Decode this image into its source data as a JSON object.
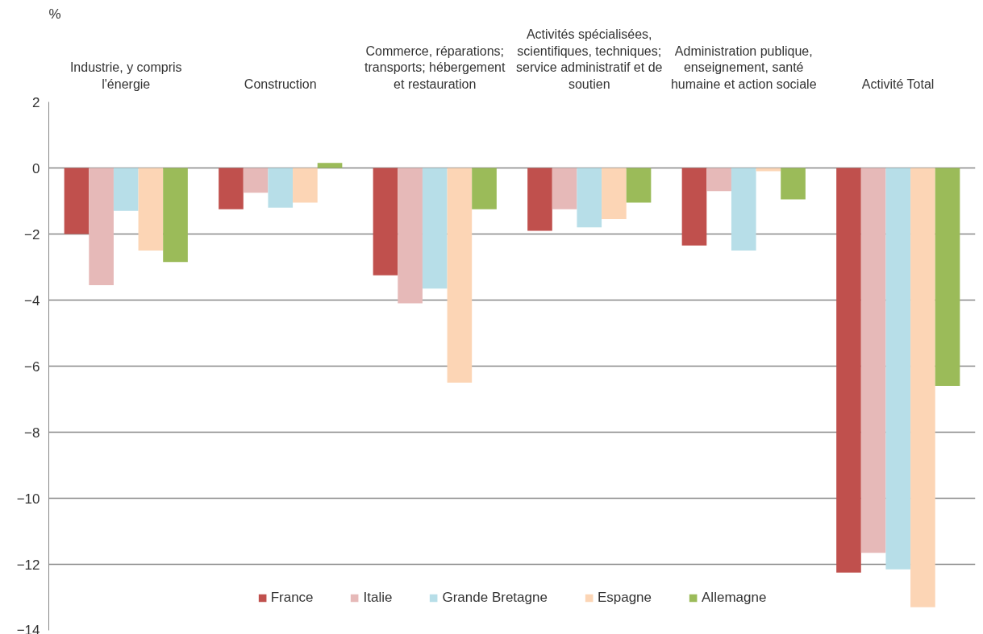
{
  "chart_data": {
    "type": "bar",
    "ylabel": "%",
    "categories": [
      "Industrie, y compris\nl'énergie",
      "Construction",
      "Commerce, réparations;\ntransports; hébergement\net restauration",
      "Activités spécialisées,\nscientifiques, techniques;\nservice administratif et de\nsoutien",
      "Administration publique,\nenseignement, santé\nhumaine et action sociale",
      "Activité Total"
    ],
    "series": [
      {
        "name": "France",
        "color": "#c0504d",
        "values": [
          -2.0,
          -1.25,
          -3.25,
          -1.9,
          -2.35,
          -12.25
        ]
      },
      {
        "name": "Italie",
        "color": "#e6b9b8",
        "values": [
          -3.55,
          -0.75,
          -4.1,
          -1.25,
          -0.7,
          -11.65
        ]
      },
      {
        "name": "Grande Bretagne",
        "color": "#b7dee8",
        "values": [
          -1.3,
          -1.2,
          -3.65,
          -1.8,
          -2.5,
          -12.15
        ]
      },
      {
        "name": "Espagne",
        "color": "#fcd5b5",
        "values": [
          -2.5,
          -1.05,
          -6.5,
          -1.55,
          -0.1,
          -13.3
        ]
      },
      {
        "name": "Allemagne",
        "color": "#9bbb59",
        "values": [
          -2.85,
          0.15,
          -1.25,
          -1.05,
          -0.95,
          -6.6
        ]
      }
    ],
    "ylim": [
      -14,
      2
    ],
    "yticks": [
      -14,
      -12,
      -10,
      -8,
      -6,
      -4,
      -2,
      0,
      2
    ],
    "grid": "y",
    "legend": "bottom"
  }
}
